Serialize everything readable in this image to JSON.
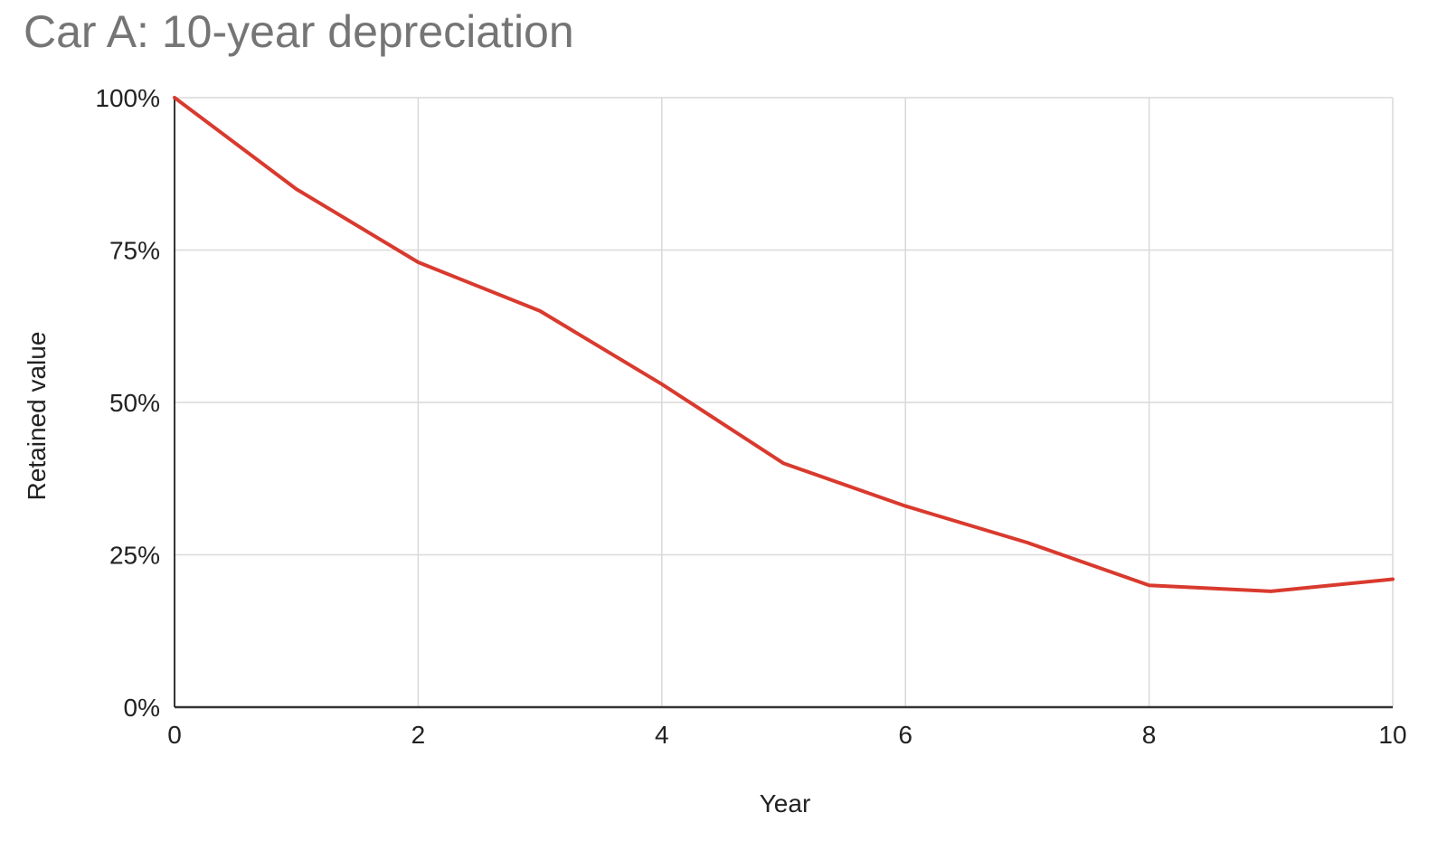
{
  "chart_data": {
    "type": "line",
    "title": "Car A: 10-year depreciation",
    "xlabel": "Year",
    "ylabel": "Retained value",
    "x": [
      0,
      1,
      2,
      3,
      4,
      5,
      6,
      7,
      8,
      9,
      10
    ],
    "series": [
      {
        "values": [
          100,
          85,
          73,
          65,
          53,
          40,
          33,
          27,
          20,
          19,
          21
        ],
        "color": "#d93a2e"
      }
    ],
    "xlim": [
      0,
      10
    ],
    "ylim": [
      0,
      100
    ],
    "xticks": [
      0,
      2,
      4,
      6,
      8,
      10
    ],
    "xtick_labels": [
      "0",
      "2",
      "4",
      "6",
      "8",
      "10"
    ],
    "yticks": [
      0,
      25,
      50,
      75,
      100
    ],
    "ytick_labels": [
      "0%",
      "25%",
      "50%",
      "75%",
      "100%"
    ],
    "grid": true,
    "legend": "none",
    "colors": {
      "line": "#d93a2e",
      "grid": "#d9d9d9",
      "axis": "#333333",
      "title": "#757575"
    }
  }
}
